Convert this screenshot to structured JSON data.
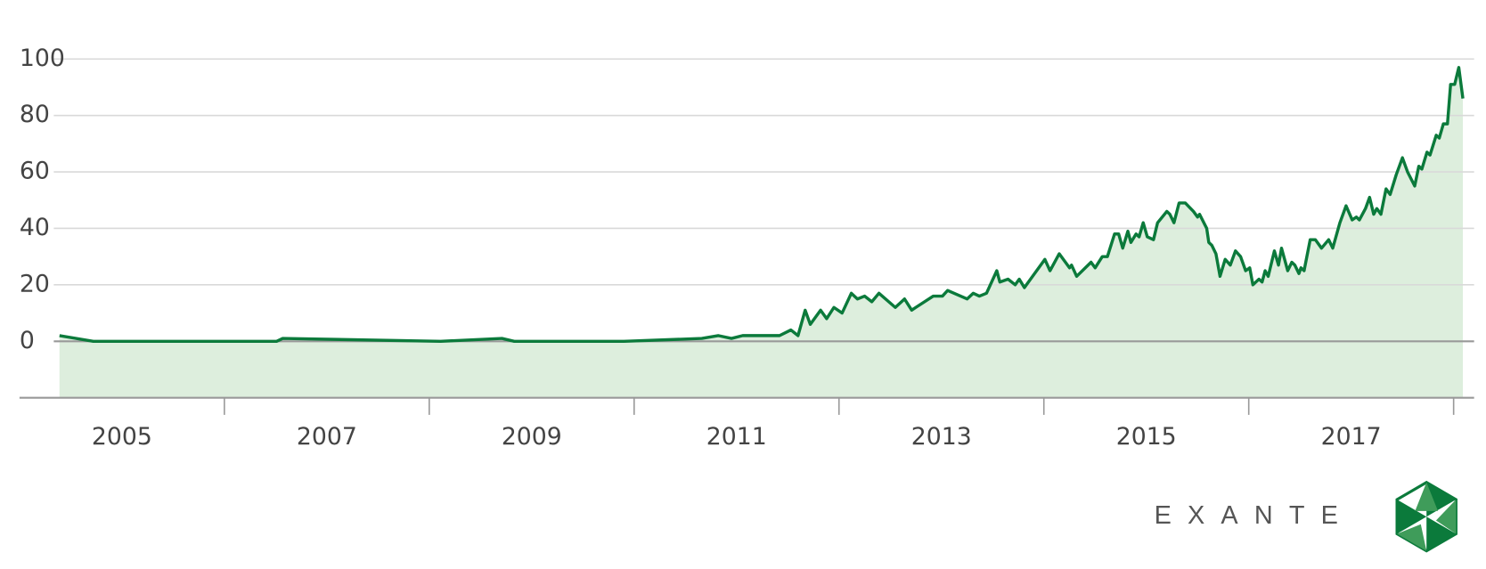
{
  "chart_data": {
    "type": "area",
    "logo_text": "EXANTE",
    "color": "#0b7a3b",
    "fill_color": "#ddeedd",
    "grid": true,
    "xlim": [
      2004,
      2018.2
    ],
    "xticks": [
      2005,
      2007,
      2009,
      2011,
      2013,
      2015,
      2017
    ],
    "xminorticks": [
      2006,
      2008,
      2010,
      2012,
      2014,
      2016,
      2018
    ],
    "ylim": [
      -20,
      100
    ],
    "yticks": [
      0,
      20,
      40,
      60,
      80,
      100
    ],
    "x": [
      2004.39,
      2004.72,
      2006.51,
      2006.57,
      2008.11,
      2008.71,
      2008.83,
      2009.9,
      2010.66,
      2010.82,
      2010.95,
      2011.06,
      2011.42,
      2011.53,
      2011.6,
      2011.67,
      2011.72,
      2011.82,
      2011.88,
      2011.95,
      2012.03,
      2012.12,
      2012.18,
      2012.25,
      2012.32,
      2012.39,
      2012.55,
      2012.64,
      2012.71,
      2012.75,
      2012.92,
      2013.01,
      2013.06,
      2013.25,
      2013.31,
      2013.37,
      2013.44,
      2013.54,
      2013.57,
      2013.65,
      2013.72,
      2013.76,
      2013.81,
      2014.01,
      2014.06,
      2014.15,
      2014.25,
      2014.27,
      2014.32,
      2014.46,
      2014.5,
      2014.57,
      2014.62,
      2014.69,
      2014.73,
      2014.77,
      2014.82,
      2014.85,
      2014.9,
      2014.93,
      2014.97,
      2015.01,
      2015.07,
      2015.11,
      2015.2,
      2015.23,
      2015.27,
      2015.32,
      2015.38,
      2015.46,
      2015.5,
      2015.52,
      2015.59,
      2015.61,
      2015.64,
      2015.68,
      2015.72,
      2015.77,
      2015.82,
      2015.87,
      2015.92,
      2015.97,
      2016.01,
      2016.04,
      2016.1,
      2016.13,
      2016.16,
      2016.19,
      2016.25,
      2016.29,
      2016.32,
      2016.38,
      2016.42,
      2016.45,
      2016.49,
      2016.51,
      2016.54,
      2016.6,
      2016.65,
      2016.71,
      2016.78,
      2016.82,
      2016.89,
      2016.95,
      2017.01,
      2017.05,
      2017.08,
      2017.14,
      2017.18,
      2017.22,
      2017.25,
      2017.29,
      2017.34,
      2017.38,
      2017.44,
      2017.5,
      2017.55,
      2017.62,
      2017.66,
      2017.69,
      2017.74,
      2017.77,
      2017.83,
      2017.86,
      2017.9,
      2017.94,
      2017.97,
      2018.01,
      2018.05,
      2018.09
    ],
    "values": [
      2,
      0,
      0,
      1,
      0,
      1,
      0,
      0,
      1,
      2,
      1,
      2,
      2,
      4,
      2,
      11,
      6,
      11,
      8,
      12,
      10,
      17,
      15,
      16,
      14,
      17,
      12,
      15,
      11,
      12,
      16,
      16,
      18,
      15,
      17,
      16,
      17,
      25,
      21,
      22,
      20,
      22,
      19,
      29,
      25,
      31,
      26,
      27,
      23,
      28,
      26,
      30,
      30,
      38,
      38,
      33,
      39,
      35,
      38,
      37,
      42,
      37,
      36,
      42,
      46,
      45,
      42,
      49,
      49,
      46,
      44,
      45,
      40,
      35,
      34,
      31,
      23,
      29,
      27,
      32,
      30,
      25,
      26,
      20,
      22,
      21,
      25,
      23,
      32,
      27,
      33,
      25,
      28,
      27,
      24,
      26,
      25,
      36,
      36,
      33,
      36,
      33,
      42,
      48,
      43,
      44,
      43,
      47,
      51,
      45,
      47,
      45,
      54,
      52,
      59,
      65,
      60,
      55,
      62,
      61,
      67,
      66,
      73,
      72,
      77,
      77,
      91,
      91,
      97,
      86
    ]
  }
}
